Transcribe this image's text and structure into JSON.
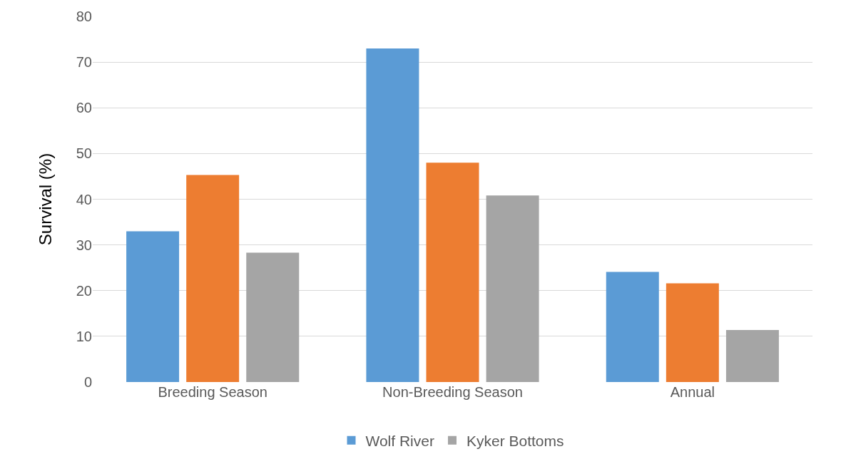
{
  "chart_data": {
    "type": "bar",
    "ylabel": "Survival (%)",
    "categories": [
      "Breeding Season",
      "Non-Breeding Season",
      "Annual"
    ],
    "series": [
      {
        "name": "Wolf River",
        "color": "#5b9bd5",
        "values": [
          33.0,
          73.0,
          24.1
        ]
      },
      {
        "color": "#ed7d31",
        "values": [
          45.3,
          48.0,
          21.6
        ]
      },
      {
        "name": "Kyker Bottoms",
        "color": "#a5a5a5",
        "values": [
          28.3,
          40.8,
          11.4
        ]
      }
    ],
    "ylim": [
      0,
      80
    ],
    "yticks": [
      0,
      10,
      20,
      30,
      40,
      50,
      60,
      70,
      80
    ],
    "grid": "y",
    "legend": "bottom"
  }
}
